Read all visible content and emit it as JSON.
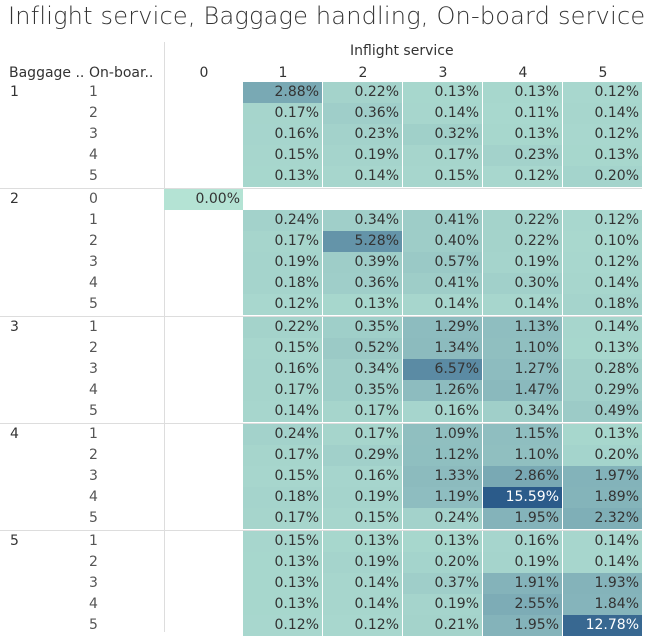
{
  "title": "Inflight service, Baggage handling, On-board service",
  "colors": {
    "low": "#b4e3d4",
    "high": "#2b5b8a"
  },
  "chart_data": {
    "type": "heatmap",
    "title": "Inflight service, Baggage handling, On-board service",
    "column_header": "Inflight service",
    "row_headers": [
      "Baggage ..",
      "On-boar.."
    ],
    "columns": [
      "0",
      "1",
      "2",
      "3",
      "4",
      "5"
    ],
    "groups": [
      {
        "label": "1",
        "rows": [
          {
            "sub": "1",
            "values": [
              null,
              2.88,
              0.22,
              0.13,
              0.13,
              0.12
            ]
          },
          {
            "sub": "2",
            "values": [
              null,
              0.17,
              0.36,
              0.14,
              0.11,
              0.14
            ]
          },
          {
            "sub": "3",
            "values": [
              null,
              0.16,
              0.23,
              0.32,
              0.13,
              0.12
            ]
          },
          {
            "sub": "4",
            "values": [
              null,
              0.15,
              0.19,
              0.17,
              0.23,
              0.13
            ]
          },
          {
            "sub": "5",
            "values": [
              null,
              0.13,
              0.14,
              0.15,
              0.12,
              0.2
            ]
          }
        ]
      },
      {
        "label": "2",
        "rows": [
          {
            "sub": "0",
            "values": [
              0.0,
              null,
              null,
              null,
              null,
              null
            ]
          },
          {
            "sub": "1",
            "values": [
              null,
              0.24,
              0.34,
              0.41,
              0.22,
              0.12
            ]
          },
          {
            "sub": "2",
            "values": [
              null,
              0.17,
              5.28,
              0.4,
              0.22,
              0.1
            ]
          },
          {
            "sub": "3",
            "values": [
              null,
              0.19,
              0.39,
              0.57,
              0.19,
              0.12
            ]
          },
          {
            "sub": "4",
            "values": [
              null,
              0.18,
              0.36,
              0.41,
              0.3,
              0.14
            ]
          },
          {
            "sub": "5",
            "values": [
              null,
              0.12,
              0.13,
              0.14,
              0.14,
              0.18
            ]
          }
        ]
      },
      {
        "label": "3",
        "rows": [
          {
            "sub": "1",
            "values": [
              null,
              0.22,
              0.35,
              1.29,
              1.13,
              0.14
            ]
          },
          {
            "sub": "2",
            "values": [
              null,
              0.15,
              0.52,
              1.34,
              1.1,
              0.13
            ]
          },
          {
            "sub": "3",
            "values": [
              null,
              0.16,
              0.34,
              6.57,
              1.27,
              0.28
            ]
          },
          {
            "sub": "4",
            "values": [
              null,
              0.17,
              0.35,
              1.26,
              1.47,
              0.29
            ]
          },
          {
            "sub": "5",
            "values": [
              null,
              0.14,
              0.17,
              0.16,
              0.34,
              0.49
            ]
          }
        ]
      },
      {
        "label": "4",
        "rows": [
          {
            "sub": "1",
            "values": [
              null,
              0.24,
              0.17,
              1.09,
              1.15,
              0.13
            ]
          },
          {
            "sub": "2",
            "values": [
              null,
              0.17,
              0.29,
              1.12,
              1.1,
              0.2
            ]
          },
          {
            "sub": "3",
            "values": [
              null,
              0.15,
              0.16,
              1.33,
              2.86,
              1.97
            ]
          },
          {
            "sub": "4",
            "values": [
              null,
              0.18,
              0.19,
              1.19,
              15.59,
              1.89
            ]
          },
          {
            "sub": "5",
            "values": [
              null,
              0.17,
              0.15,
              0.24,
              1.95,
              2.32
            ]
          }
        ]
      },
      {
        "label": "5",
        "rows": [
          {
            "sub": "1",
            "values": [
              null,
              0.15,
              0.13,
              0.13,
              0.16,
              0.14
            ]
          },
          {
            "sub": "2",
            "values": [
              null,
              0.13,
              0.19,
              0.2,
              0.19,
              0.14
            ]
          },
          {
            "sub": "3",
            "values": [
              null,
              0.13,
              0.14,
              0.37,
              1.91,
              1.93
            ]
          },
          {
            "sub": "4",
            "values": [
              null,
              0.13,
              0.14,
              0.19,
              2.55,
              1.84
            ]
          },
          {
            "sub": "5",
            "values": [
              null,
              0.12,
              0.12,
              0.21,
              1.95,
              12.78
            ]
          }
        ]
      }
    ],
    "value_suffix": "%"
  }
}
